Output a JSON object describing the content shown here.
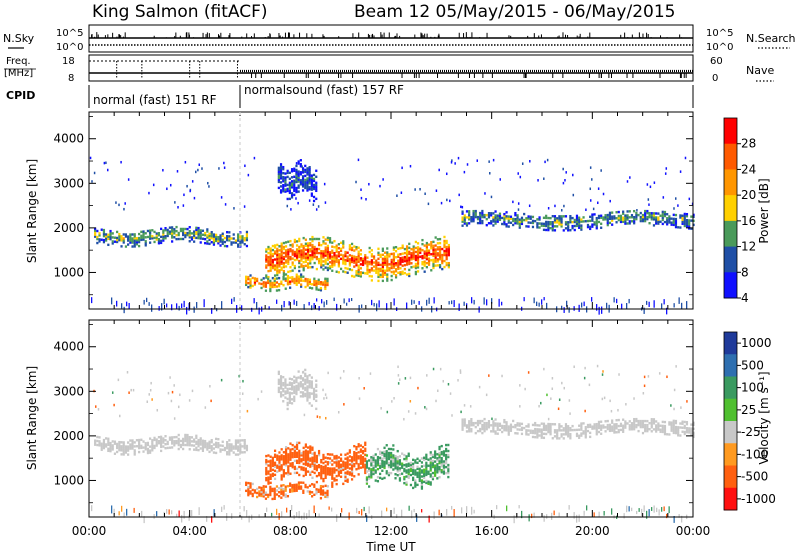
{
  "header": {
    "station": "King Salmon (fitACF)",
    "beam_dates": "Beam 12 05/May/2015 - 06/May/2015"
  },
  "top_panel": {
    "left_label_sky": "N.Sky",
    "right_label_search": "N.Search",
    "y_ticks_left": [
      "10^5",
      "10^0"
    ],
    "y_ticks_right": [
      "10^5",
      "10^0"
    ],
    "freq_label_1": "Freq.",
    "freq_label_2": "[MHz]",
    "freq_ticks": [
      "18",
      "8"
    ],
    "nave_ticks": [
      "60",
      "0"
    ],
    "nave_label": "Nave",
    "cpid_label": "CPID",
    "cpid_segments": [
      {
        "label": "normal (fast) 151 RF",
        "start_hour": 0,
        "end_hour": 6
      },
      {
        "label": "normalsound (fast) 157 RF",
        "start_hour": 6,
        "end_hour": 24
      }
    ]
  },
  "chart_data": [
    {
      "type": "heatmap",
      "title": "Power",
      "ylabel": "Slant Range [km]",
      "xlabel": "",
      "x_range_hours": [
        0,
        24
      ],
      "ylim": [
        180,
        4600
      ],
      "y_ticks": [
        1000,
        2000,
        3000,
        4000
      ],
      "colorbar_label": "Power [dB]",
      "colorbar_ticks": [
        "28",
        "24",
        "20",
        "16",
        "12",
        "8",
        "4"
      ],
      "colorbar_colors": [
        "#ff0000",
        "#ff5a00",
        "#ff9600",
        "#ffd000",
        "#4a9a5a",
        "#1f4fa6",
        "#1010ff"
      ],
      "features": [
        {
          "name": "band_a",
          "x_start": 0.2,
          "x_end": 6.3,
          "y_center": 1850,
          "half_width": 180,
          "intensity": 0.4
        },
        {
          "name": "band_b",
          "x_start": 14.8,
          "x_end": 24.0,
          "y_center": 2200,
          "half_width": 170,
          "intensity": 0.35
        },
        {
          "name": "patch_main",
          "x_start": 7.0,
          "x_end": 14.3,
          "y_center": 1350,
          "half_width": 380,
          "intensity": 0.85
        },
        {
          "name": "patch_low",
          "x_start": 6.2,
          "x_end": 9.5,
          "y_center": 800,
          "half_width": 140,
          "intensity": 0.75
        },
        {
          "name": "patch_high",
          "x_start": 7.5,
          "x_end": 9.0,
          "y_center": 3100,
          "half_width": 350,
          "intensity": 0.2
        }
      ]
    },
    {
      "type": "heatmap",
      "title": "Velocity",
      "ylabel": "Slant Range [km]",
      "xlabel": "Time UT",
      "x_range_hours": [
        0,
        24
      ],
      "x_ticks": [
        "00:00",
        "04:00",
        "08:00",
        "12:00",
        "16:00",
        "20:00",
        "00:00"
      ],
      "ylim": [
        180,
        4600
      ],
      "y_ticks": [
        1000,
        2000,
        3000,
        4000
      ],
      "colorbar_label": "Velocity [m s⁻¹]",
      "colorbar_ticks": [
        "1000",
        "500",
        "100",
        "25",
        "-25",
        "-100",
        "-500",
        "-1000"
      ],
      "colorbar_colors": [
        "#1f3a9a",
        "#2e6fb0",
        "#3a9a60",
        "#50c030",
        "#c8c8c8",
        "#ff9a20",
        "#ff6010",
        "#ff1010"
      ],
      "features": [
        {
          "name": "band_a",
          "x_start": 0.2,
          "x_end": 6.3,
          "y_center": 1850,
          "half_width": 180,
          "velocity": 0
        },
        {
          "name": "band_b",
          "x_start": 14.8,
          "x_end": 24.0,
          "y_center": 2200,
          "half_width": 170,
          "velocity": 0
        },
        {
          "name": "patch_orange",
          "x_start": 7.0,
          "x_end": 11.0,
          "y_center": 1400,
          "half_width": 380,
          "velocity": -300
        },
        {
          "name": "patch_green",
          "x_start": 11.0,
          "x_end": 14.3,
          "y_center": 1350,
          "half_width": 380,
          "velocity": 150
        },
        {
          "name": "patch_low",
          "x_start": 6.2,
          "x_end": 9.5,
          "y_center": 800,
          "half_width": 140,
          "velocity": -200
        },
        {
          "name": "patch_high",
          "x_start": 7.5,
          "x_end": 9.0,
          "y_center": 3100,
          "half_width": 350,
          "velocity": 0
        }
      ]
    }
  ]
}
